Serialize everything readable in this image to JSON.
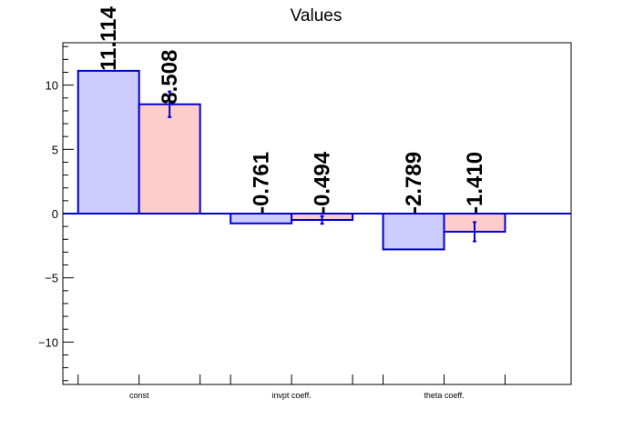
{
  "chart_data": {
    "type": "bar",
    "title": "Values",
    "xlabel": "",
    "ylabel": "",
    "categories": [
      "const",
      "invpt coeff.",
      "theta coeff."
    ],
    "series": [
      {
        "values": [
          11.114,
          -0.761,
          -2.789
        ],
        "errors": [
          0,
          0,
          0
        ],
        "labels": [
          "11.114",
          "-0.761",
          "-2.789"
        ],
        "fill": "#ccccff",
        "stroke": "#0000cc"
      },
      {
        "values": [
          8.508,
          -0.494,
          -1.41
        ],
        "errors": [
          1.0,
          0.3,
          0.75
        ],
        "labels": [
          "8.508",
          "-0.494",
          "-1.410"
        ],
        "fill": "#ffcccc",
        "stroke": "#0000cc"
      }
    ],
    "ylim": [
      -13.3,
      13.3
    ],
    "yticks": [
      -10,
      -5,
      0,
      5,
      10
    ],
    "ytick_labels": [
      "−10",
      "−5",
      "0",
      "5",
      "10"
    ],
    "grid": false,
    "zero_line": true
  }
}
